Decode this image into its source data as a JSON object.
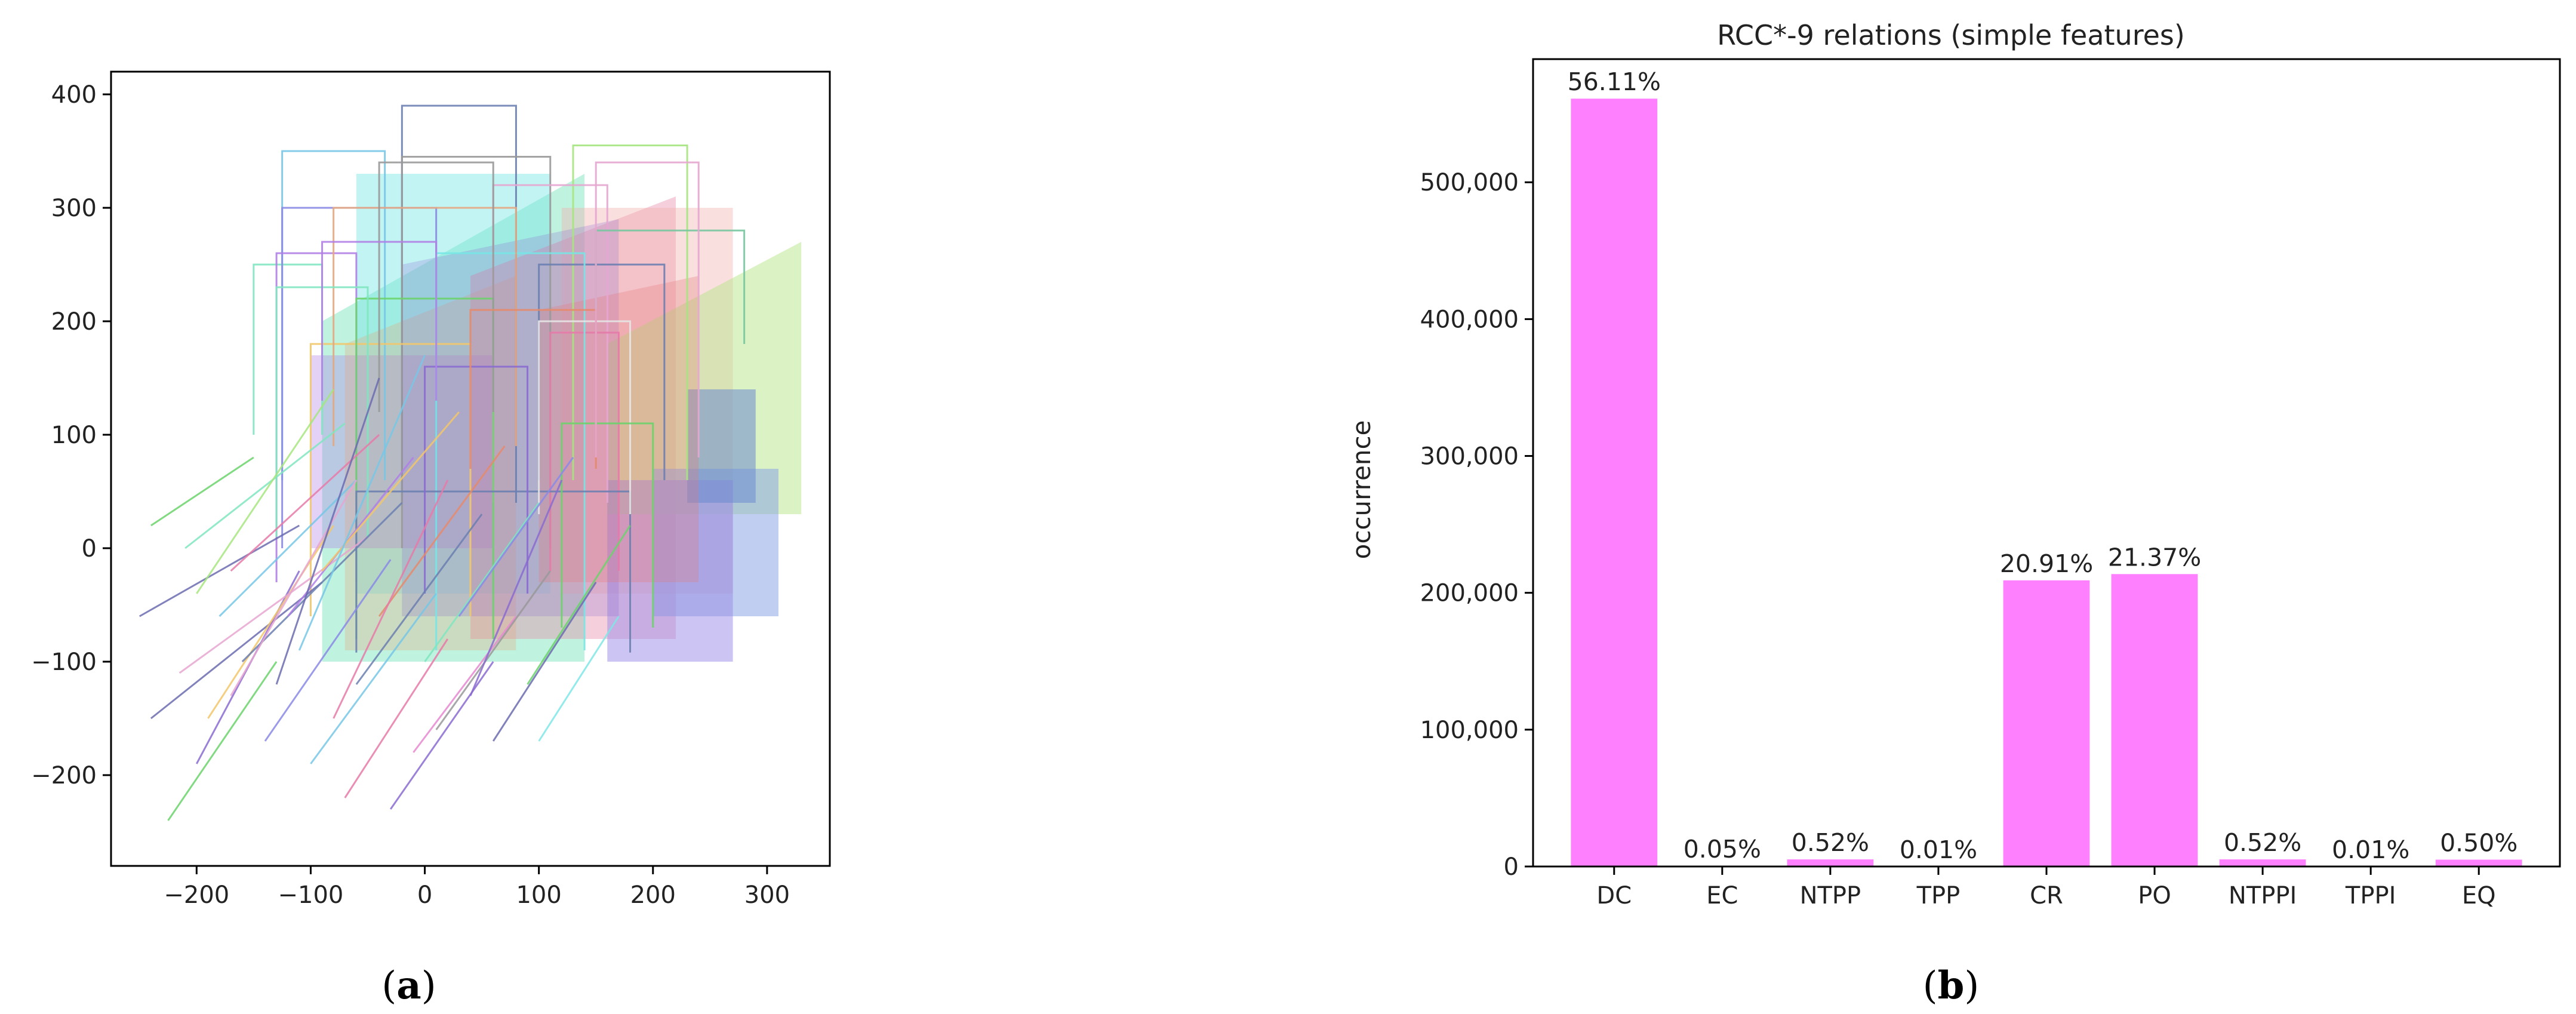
{
  "captions": {
    "a_letter": "a",
    "b_letter": "b"
  },
  "chart_data": [
    {
      "type": "scatter",
      "title": "",
      "xlabel": "",
      "ylabel": "",
      "xlim": [
        -275,
        355
      ],
      "ylim": [
        -280,
        420
      ],
      "xticks": [
        -200,
        -100,
        0,
        100,
        200,
        300
      ],
      "yticks": [
        -200,
        -100,
        0,
        100,
        200,
        300,
        400
      ],
      "xtick_labels": [
        "−200",
        "−100",
        "0",
        "100",
        "200",
        "300"
      ],
      "ytick_labels": [
        "−200",
        "−100",
        "0",
        "100",
        "200",
        "300",
        "400"
      ],
      "grid": false,
      "palette": [
        "#6bd36b",
        "#8a8ae6",
        "#e67aa8",
        "#77c7e6",
        "#f2c76b",
        "#b07fe6",
        "#7fe6c0",
        "#e68a6b",
        "#6b7fb0",
        "#a6e67f",
        "#e6a6d0",
        "#999999"
      ],
      "filled_shapes": [
        {
          "points": [
            [
              -90,
              -100
            ],
            [
              -90,
              200
            ],
            [
              140,
              330
            ],
            [
              140,
              -100
            ]
          ],
          "color": "#7fe6c0",
          "opacity": 0.5
        },
        {
          "points": [
            [
              -60,
              -40
            ],
            [
              -60,
              330
            ],
            [
              110,
              330
            ],
            [
              110,
              -40
            ]
          ],
          "color": "#77e6e6",
          "opacity": 0.45
        },
        {
          "points": [
            [
              40,
              -80
            ],
            [
              40,
              240
            ],
            [
              220,
              310
            ],
            [
              220,
              -80
            ]
          ],
          "color": "#e68aa8",
          "opacity": 0.4
        },
        {
          "points": [
            [
              120,
              -40
            ],
            [
              120,
              300
            ],
            [
              270,
              300
            ],
            [
              270,
              -40
            ]
          ],
          "color": "#f2b0b0",
          "opacity": 0.4
        },
        {
          "points": [
            [
              160,
              30
            ],
            [
              160,
              180
            ],
            [
              330,
              270
            ],
            [
              330,
              30
            ]
          ],
          "color": "#b8e68a",
          "opacity": 0.5
        },
        {
          "points": [
            [
              200,
              -60
            ],
            [
              200,
              70
            ],
            [
              310,
              70
            ],
            [
              310,
              -60
            ]
          ],
          "color": "#8aa6e6",
          "opacity": 0.55
        },
        {
          "points": [
            [
              160,
              -100
            ],
            [
              160,
              60
            ],
            [
              270,
              60
            ],
            [
              270,
              -100
            ]
          ],
          "color": "#9a8ae6",
          "opacity": 0.5
        },
        {
          "points": [
            [
              230,
              40
            ],
            [
              230,
              140
            ],
            [
              290,
              140
            ],
            [
              290,
              40
            ]
          ],
          "color": "#6b8ad0",
          "opacity": 0.55
        },
        {
          "points": [
            [
              -100,
              0
            ],
            [
              -100,
              170
            ],
            [
              60,
              170
            ],
            [
              60,
              0
            ]
          ],
          "color": "#b07fe6",
          "opacity": 0.35
        },
        {
          "points": [
            [
              -70,
              -90
            ],
            [
              -70,
              180
            ],
            [
              80,
              240
            ],
            [
              80,
              -90
            ]
          ],
          "color": "#e6a67f",
          "opacity": 0.3
        },
        {
          "points": [
            [
              -20,
              -60
            ],
            [
              -20,
              250
            ],
            [
              170,
              290
            ],
            [
              170,
              -60
            ]
          ],
          "color": "#8a6bd0",
          "opacity": 0.25
        },
        {
          "points": [
            [
              100,
              -30
            ],
            [
              100,
              210
            ],
            [
              240,
              240
            ],
            [
              240,
              -30
            ]
          ],
          "color": "#e67a7a",
          "opacity": 0.3
        }
      ],
      "outline_rects": [
        {
          "x0": -125,
          "x1": -35,
          "y0": 60,
          "y1": 350,
          "color": "#77c7e6"
        },
        {
          "x0": -20,
          "x1": 80,
          "y0": 40,
          "y1": 390,
          "color": "#6b7fb0"
        },
        {
          "x0": 130,
          "x1": 230,
          "y0": 60,
          "y1": 355,
          "color": "#a6e67f"
        },
        {
          "x0": -150,
          "x1": -90,
          "y0": 100,
          "y1": 250,
          "color": "#7fe6c0"
        },
        {
          "x0": -125,
          "x1": 10,
          "y0": 0,
          "y1": 300,
          "color": "#8a8ae6"
        },
        {
          "x0": -20,
          "x1": 110,
          "y0": 0,
          "y1": 345,
          "color": "#999999"
        },
        {
          "x0": -130,
          "x1": -60,
          "y0": -30,
          "y1": 260,
          "color": "#b07fe6"
        },
        {
          "x0": 60,
          "x1": 160,
          "y0": 40,
          "y1": 320,
          "color": "#e6a6d0"
        },
        {
          "x0": 100,
          "x1": 210,
          "y0": 60,
          "y1": 250,
          "color": "#6b7fb0"
        },
        {
          "x0": -100,
          "x1": 40,
          "y0": -60,
          "y1": 180,
          "color": "#f2c76b"
        },
        {
          "x0": 110,
          "x1": 170,
          "y0": -20,
          "y1": 190,
          "color": "#e67aa8"
        },
        {
          "x0": -60,
          "x1": 60,
          "y0": -80,
          "y1": 220,
          "color": "#6bd36b"
        },
        {
          "x0": 10,
          "x1": 140,
          "y0": -90,
          "y1": 260,
          "color": "#77e6e6"
        },
        {
          "x0": 150,
          "x1": 280,
          "y0": 180,
          "y1": 280,
          "color": "#77c7a0"
        },
        {
          "x0": -80,
          "x1": 80,
          "y0": 90,
          "y1": 300,
          "color": "#e6a67f"
        },
        {
          "x0": -60,
          "x1": 180,
          "y0": -92,
          "y1": 50,
          "color": "#6b7fb0"
        },
        {
          "x0": -40,
          "x1": 60,
          "y0": 120,
          "y1": 340,
          "color": "#999999"
        },
        {
          "x0": 100,
          "x1": 180,
          "y0": 30,
          "y1": 200,
          "color": "#e6e6e6"
        },
        {
          "x0": -130,
          "x1": -50,
          "y0": 10,
          "y1": 230,
          "color": "#7fe6c0"
        },
        {
          "x0": 0,
          "x1": 90,
          "y0": -40,
          "y1": 160,
          "color": "#8a6bd0"
        },
        {
          "x0": 40,
          "x1": 150,
          "y0": 70,
          "y1": 210,
          "color": "#e68a6b"
        },
        {
          "x0": 120,
          "x1": 200,
          "y0": -70,
          "y1": 110,
          "color": "#6bd36b"
        },
        {
          "x0": -90,
          "x1": 10,
          "y0": 130,
          "y1": 270,
          "color": "#b07fe6"
        },
        {
          "x0": 150,
          "x1": 240,
          "y0": 80,
          "y1": 340,
          "color": "#e6a6d0"
        }
      ],
      "segments": [
        {
          "x0": -240,
          "y0": 20,
          "x1": -150,
          "y1": 80,
          "color": "#6bd36b"
        },
        {
          "x0": -250,
          "y0": -60,
          "x1": -110,
          "y1": 20,
          "color": "#6b6bb0"
        },
        {
          "x0": -240,
          "y0": -150,
          "x1": -90,
          "y1": -30,
          "color": "#6b6bb0"
        },
        {
          "x0": -225,
          "y0": -240,
          "x1": -130,
          "y1": -100,
          "color": "#6bd36b"
        },
        {
          "x0": -200,
          "y0": -190,
          "x1": -110,
          "y1": -20,
          "color": "#8a6bd0"
        },
        {
          "x0": -190,
          "y0": -150,
          "x1": -80,
          "y1": 20,
          "color": "#f2c76b"
        },
        {
          "x0": -215,
          "y0": -110,
          "x1": -50,
          "y1": 10,
          "color": "#e6a6d0"
        },
        {
          "x0": -180,
          "y0": -60,
          "x1": -60,
          "y1": 60,
          "color": "#77c7e6"
        },
        {
          "x0": -170,
          "y0": -20,
          "x1": -40,
          "y1": 100,
          "color": "#e67aa8"
        },
        {
          "x0": -210,
          "y0": 0,
          "x1": -70,
          "y1": 110,
          "color": "#7fe6c0"
        },
        {
          "x0": -160,
          "y0": -100,
          "x1": -20,
          "y1": 40,
          "color": "#6b7fb0"
        },
        {
          "x0": -140,
          "y0": -170,
          "x1": -30,
          "y1": -10,
          "color": "#8a8ae6"
        },
        {
          "x0": -100,
          "y0": -190,
          "x1": 10,
          "y1": -40,
          "color": "#77c7e6"
        },
        {
          "x0": -70,
          "y0": -220,
          "x1": 20,
          "y1": -80,
          "color": "#e67aa8"
        },
        {
          "x0": -30,
          "y0": -230,
          "x1": 60,
          "y1": -100,
          "color": "#8a6bd0"
        },
        {
          "x0": -10,
          "y0": -180,
          "x1": 80,
          "y1": -60,
          "color": "#e68ad0"
        },
        {
          "x0": 10,
          "y0": -160,
          "x1": 110,
          "y1": -20,
          "color": "#999999"
        },
        {
          "x0": 60,
          "y0": -170,
          "x1": 150,
          "y1": -30,
          "color": "#6b6bb0"
        },
        {
          "x0": 100,
          "y0": -170,
          "x1": 170,
          "y1": -60,
          "color": "#7fe6e6"
        },
        {
          "x0": 90,
          "y0": -120,
          "x1": 180,
          "y1": 20,
          "color": "#6bd36b"
        },
        {
          "x0": -120,
          "y0": -60,
          "x1": -10,
          "y1": 80,
          "color": "#b07fe6"
        },
        {
          "x0": -90,
          "y0": -20,
          "x1": 30,
          "y1": 120,
          "color": "#f2c76b"
        },
        {
          "x0": -60,
          "y0": -120,
          "x1": 50,
          "y1": 30,
          "color": "#6b7fb0"
        },
        {
          "x0": -40,
          "y0": -60,
          "x1": 70,
          "y1": 90,
          "color": "#e68a6b"
        },
        {
          "x0": 0,
          "y0": -100,
          "x1": 100,
          "y1": 40,
          "color": "#7fe6c0"
        },
        {
          "x0": 30,
          "y0": -60,
          "x1": 130,
          "y1": 80,
          "color": "#8a8ae6"
        },
        {
          "x0": -200,
          "y0": -40,
          "x1": -80,
          "y1": 140,
          "color": "#a6e67f"
        },
        {
          "x0": -170,
          "y0": -130,
          "x1": -60,
          "y1": 60,
          "color": "#e6a6d0"
        },
        {
          "x0": -130,
          "y0": -120,
          "x1": -40,
          "y1": 150,
          "color": "#6b6bb0"
        },
        {
          "x0": -110,
          "y0": -90,
          "x1": 0,
          "y1": 170,
          "color": "#77c7e6"
        },
        {
          "x0": -80,
          "y0": -150,
          "x1": 20,
          "y1": 60,
          "color": "#e67aa8"
        },
        {
          "x0": 40,
          "y0": -130,
          "x1": 120,
          "y1": 60,
          "color": "#8a6bd0"
        }
      ]
    },
    {
      "type": "bar",
      "title": "RCC*-9 relations (simple features)",
      "xlabel": "",
      "ylabel": "occurrence",
      "categories": [
        "DC",
        "EC",
        "NTPP",
        "TPP",
        "CR",
        "PO",
        "NTPPI",
        "TPPI",
        "EQ"
      ],
      "values": [
        561100,
        500,
        5200,
        100,
        209100,
        213700,
        5200,
        100,
        5000
      ],
      "value_labels": [
        "56.11%",
        "0.05%",
        "0.52%",
        "0.01%",
        "20.91%",
        "21.37%",
        "0.52%",
        "0.01%",
        "0.50%"
      ],
      "ylim": [
        0,
        590000
      ],
      "yticks": [
        0,
        100000,
        200000,
        300000,
        400000,
        500000
      ],
      "ytick_labels": [
        "0",
        "100,000",
        "200,000",
        "300,000",
        "400,000",
        "500,000"
      ],
      "grid": false,
      "bar_color": "#ff80ff"
    }
  ]
}
